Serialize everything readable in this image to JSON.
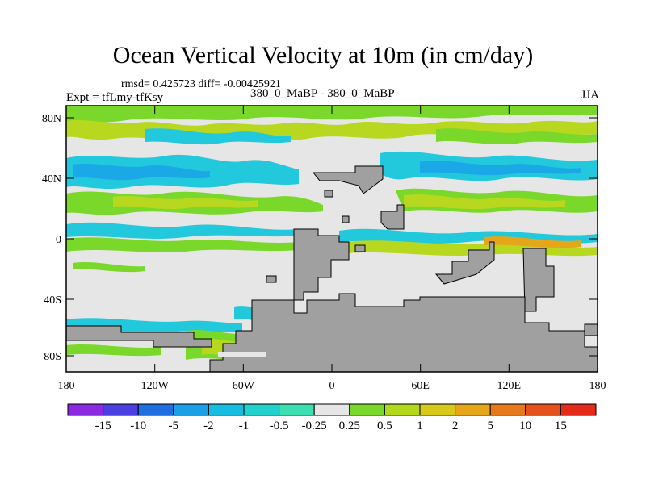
{
  "title": "Ocean Vertical Velocity at 10m (in cm/day)",
  "stats": "rmsd= 0.425723 diff= -0.00425921",
  "experiment": "Expt = tfLmy-tfKsy",
  "subtitle": "380_0_MaBP - 380_0_MaBP",
  "season": "JJA",
  "axes": {
    "lat_ticks": [
      "80N",
      "40N",
      "0",
      "40S",
      "80S"
    ],
    "lon_ticks": [
      "180",
      "120W",
      "60W",
      "0",
      "60E",
      "120E",
      "180"
    ]
  },
  "colorbar": {
    "labels": [
      "-15",
      "-10",
      "-5",
      "-2",
      "-1",
      "-0.5",
      "-0.25",
      "0.25",
      "0.5",
      "1",
      "2",
      "5",
      "10",
      "15"
    ],
    "colors": [
      "#8a2be2",
      "#4a3fe0",
      "#1f6fe0",
      "#1aa0e6",
      "#17bde0",
      "#22d0cc",
      "#3ce0b0",
      "#e6e6e6",
      "#7ad82a",
      "#b2d81a",
      "#d8c81a",
      "#e6a61a",
      "#e67a1a",
      "#e6501a",
      "#e62a1a"
    ]
  },
  "palette": {
    "ocean": "#e6e6e6",
    "land": "#a0a0a0",
    "green": "#7ad82a",
    "yellow_green": "#b8d820",
    "cyan": "#22c8dc",
    "light_blue": "#1aa8e6",
    "orange": "#e6a61a"
  }
}
